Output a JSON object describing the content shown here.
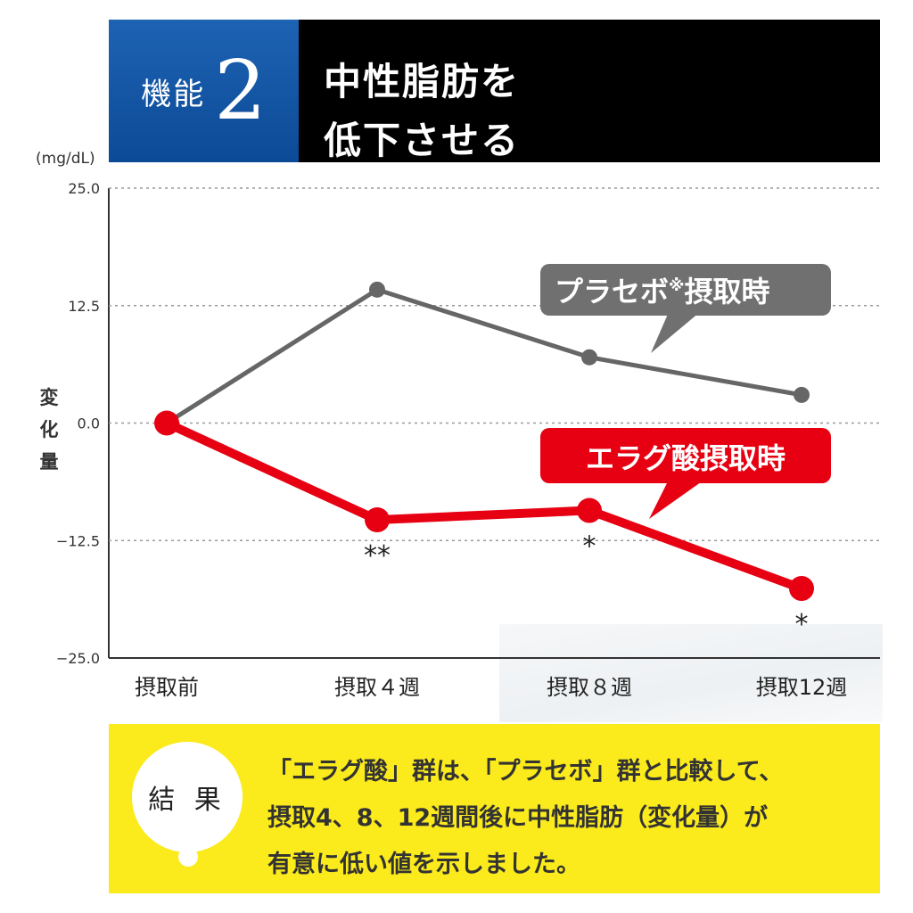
{
  "header": {
    "badge_label": "機能",
    "badge_number": "2",
    "title_line1": "中性脂肪を",
    "title_line2": "低下させる"
  },
  "chart_data": {
    "type": "line",
    "unit_label": "(mg/dL)",
    "ylabel": "変化量",
    "ylim": [
      -25.0,
      25.0
    ],
    "yticks": [
      25.0,
      12.5,
      0.0,
      -12.5,
      -25.0
    ],
    "ytick_labels": [
      "25.0",
      "12.5",
      "0.0",
      "−12.5",
      "−25.0"
    ],
    "categories": [
      "摂取前",
      "摂取４週",
      "摂取８週",
      "摂取12週"
    ],
    "grid": true,
    "series": [
      {
        "name": "プラセボ※摂取時",
        "values": [
          0.0,
          14.2,
          7.0,
          3.0
        ],
        "color": "#666666",
        "callout_main": "プラセボ",
        "callout_mark": "※",
        "callout_tail": "摂取時"
      },
      {
        "name": "エラグ酸摂取時",
        "values": [
          0.0,
          -10.3,
          -9.3,
          -17.6
        ],
        "color": "#e60012",
        "significance": [
          "",
          "**",
          "*",
          "*"
        ]
      }
    ]
  },
  "result": {
    "label": "結 果",
    "lines": [
      "「エラグ酸」群は、「プラセボ」群と比較して、",
      "摂取4、8、12週間後に中性脂肪（変化量）が",
      "有意に低い値を示しました。"
    ]
  },
  "colors": {
    "badge_blue": "#0c4a96",
    "title_black": "#000000",
    "result_yellow": "#fbeb1c",
    "placebo_gray": "#666666",
    "ellagic_red": "#e60012"
  }
}
